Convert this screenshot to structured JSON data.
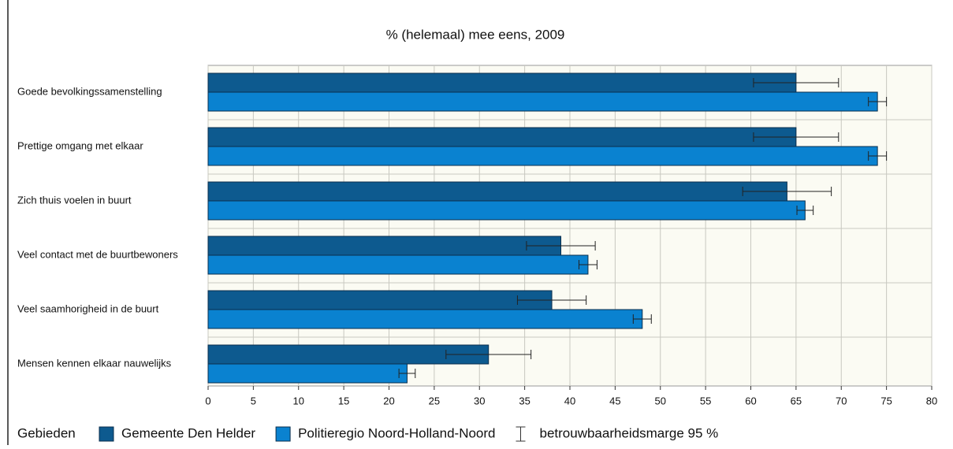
{
  "chart_data": {
    "type": "bar",
    "orientation": "horizontal",
    "title": "% (helemaal) mee eens, 2009",
    "categories": [
      "Goede bevolkingssamenstelling",
      "Prettige omgang met elkaar",
      "Zich thuis voelen in buurt",
      "Veel contact met de buurtbewoners",
      "Veel saamhorigheid in de buurt",
      "Mensen kennen elkaar nauwelijks"
    ],
    "series": [
      {
        "name": "Gemeente Den Helder",
        "color": "#0d5a8f",
        "values": [
          65,
          65,
          64,
          39,
          38,
          31
        ],
        "errors": [
          4.7,
          4.7,
          4.9,
          3.8,
          3.8,
          4.7
        ]
      },
      {
        "name": "Politieregio Noord-Holland-Noord",
        "color": "#0a82d0",
        "values": [
          74,
          74,
          66,
          42,
          48,
          22
        ],
        "errors": [
          1,
          1,
          0.9,
          1,
          1,
          0.9
        ]
      }
    ],
    "xlim": [
      0,
      80
    ],
    "xticks": [
      0,
      5,
      10,
      15,
      20,
      25,
      30,
      35,
      40,
      45,
      50,
      55,
      60,
      65,
      70,
      75,
      80
    ],
    "grid": true,
    "legend_title": "Gebieden",
    "error_label": "betrouwbaarheidsmarge 95 %"
  }
}
